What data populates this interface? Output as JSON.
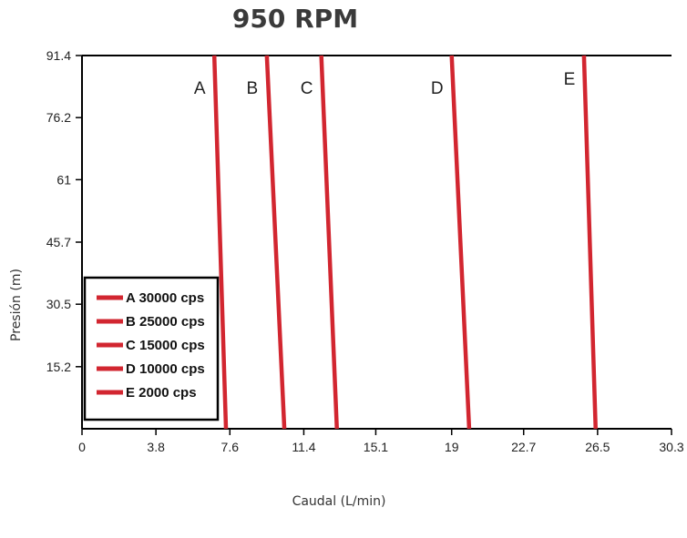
{
  "chart_data": {
    "type": "line",
    "title": "950 RPM",
    "xlabel": "Caudal (L/min)",
    "ylabel": "Presión (m)",
    "xlim": [
      0,
      30.3
    ],
    "ylim": [
      0,
      91.4
    ],
    "x_ticks": [
      "0",
      "3.8",
      "7.6",
      "11.4",
      "15.1",
      "19",
      "22.7",
      "26.5",
      "30.3"
    ],
    "x_tick_values": [
      0,
      3.8,
      7.6,
      11.4,
      15.1,
      19,
      22.7,
      26.5,
      30.3
    ],
    "y_ticks": [
      "15.2",
      "30.5",
      "45.7",
      "61",
      "76.2",
      "91.4"
    ],
    "y_tick_values": [
      15.2,
      30.5,
      45.7,
      61,
      76.2,
      91.4
    ],
    "grid": false,
    "legend_position": "bottom-left",
    "line_color": "#d22630",
    "series": [
      {
        "label": "A",
        "legend": "A 30000 cps",
        "x": [
          6.8,
          7.4
        ],
        "y": [
          91.4,
          0
        ]
      },
      {
        "label": "B",
        "legend": "B 25000 cps",
        "x": [
          9.5,
          10.4
        ],
        "y": [
          91.4,
          0
        ]
      },
      {
        "label": "C",
        "legend": "C 15000 cps",
        "x": [
          12.3,
          13.1
        ],
        "y": [
          91.4,
          0
        ]
      },
      {
        "label": "D",
        "legend": "D 10000 cps",
        "x": [
          19.0,
          19.9
        ],
        "y": [
          91.4,
          0
        ]
      },
      {
        "label": "E",
        "legend": "E 2000 cps",
        "x": [
          25.8,
          26.4
        ],
        "y": [
          91.4,
          0
        ]
      }
    ]
  }
}
